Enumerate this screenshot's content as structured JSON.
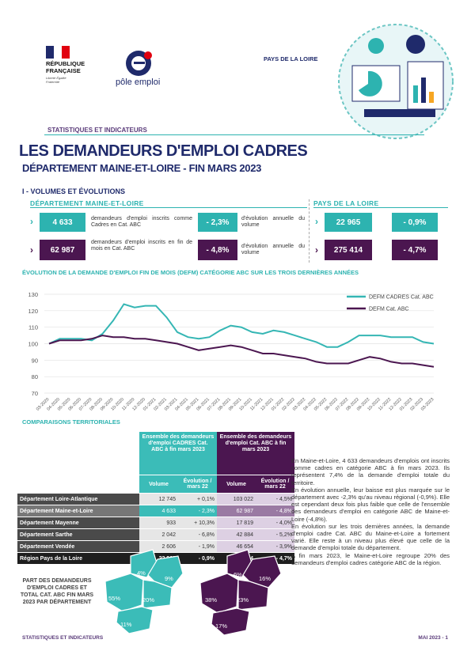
{
  "header": {
    "republique": "RÉPUBLIQUE FRANÇAISE",
    "motto": "Liberté Égalité Fraternité",
    "pole_emploi": "pôle emploi",
    "region": "PAYS DE LA LOIRE",
    "kicker": "STATISTIQUES ET INDICATEURS",
    "title": "LES DEMANDEURS D'EMPLOI CADRES",
    "subtitle": "DÉPARTEMENT MAINE-ET-LOIRE - FIN MARS 2023"
  },
  "section": "I - VOLUMES ET ÉVOLUTIONS",
  "kpis": {
    "dept_label": "DÉPARTEMENT MAINE-ET-LOIRE",
    "region_label": "PAYS DE LA LOIRE",
    "rows": [
      {
        "dept_value": "4 633",
        "dept_text": "demandeurs d'emploi inscrits comme Cadres en Cat. ABC",
        "dept_change": "- 2,3%",
        "change_text": "d'évolution annuelle du volume",
        "region_value": "22 965",
        "region_change": "- 0,9%"
      },
      {
        "dept_value": "62 987",
        "dept_text": "demandeurs d'emploi inscrits en fin de mois en Cat. ABC",
        "dept_change": "- 4,8%",
        "change_text": "d'évolution annuelle du volume",
        "region_value": "275 414",
        "region_change": "- 4,7%"
      }
    ]
  },
  "chart_data": {
    "type": "line",
    "title": "ÉVOLUTION DE LA DEMANDE D'EMPLOI FIN DE MOIS (DEFM) CATÉGORIE ABC SUR LES TROIS DERNIÈRES ANNÉES",
    "x": [
      "03-2020",
      "04-2020",
      "05-2020",
      "06-2020",
      "07-2020",
      "08-2020",
      "09-2020",
      "10-2020",
      "11-2020",
      "12-2020",
      "01-2021",
      "02-2021",
      "03-2021",
      "04-2021",
      "05-2021",
      "06-2021",
      "07-2021",
      "08-2021",
      "09-2021",
      "10-2021",
      "11-2021",
      "12-2021",
      "01-2022",
      "02-2022",
      "03-2022",
      "04-2022",
      "05-2022",
      "06-2022",
      "07-2022",
      "08-2022",
      "09-2022",
      "10-2022",
      "11-2022",
      "12-2022",
      "01-2023",
      "02-2023",
      "03-2023"
    ],
    "series": [
      {
        "name": "DEFM CADRES Cat. ABC",
        "color": "#35b6b4",
        "values": [
          100,
          103,
          103,
          103,
          102,
          106,
          114,
          124,
          122,
          123,
          123,
          116,
          107,
          104,
          103,
          104,
          108,
          111,
          110,
          107,
          106,
          108,
          107,
          105,
          103,
          101,
          98,
          98,
          101,
          105,
          105,
          105,
          104,
          104,
          104,
          101,
          100
        ]
      },
      {
        "name": "DEFM Cat. ABC",
        "color": "#4b1650",
        "values": [
          100,
          102,
          102,
          102,
          103,
          105,
          104,
          104,
          103,
          103,
          102,
          101,
          100,
          98,
          96,
          97,
          98,
          99,
          98,
          96,
          94,
          94,
          93,
          92,
          91,
          89,
          88,
          88,
          88,
          90,
          92,
          91,
          89,
          88,
          88,
          87,
          86
        ]
      }
    ],
    "ylim": [
      70,
      130
    ],
    "yticks": [
      70,
      80,
      90,
      100,
      110,
      120,
      130
    ],
    "grid": true
  },
  "comparisons": {
    "title": "COMPARAISONS TERRITORIALES",
    "group_cadres": "Ensemble des demandeurs d'emploi CADRES Cat. ABC à fin mars 2023",
    "group_abc": "Ensemble des demandeurs d'emploi Cat. ABC à fin mars 2023",
    "col_volume": "Volume",
    "col_evolution": "Évolution / mars 22",
    "rows": [
      [
        "Département Loire-Atlantique",
        "12 745",
        "+ 0,1%",
        "103 022",
        "- 4,5%"
      ],
      [
        "Département Maine-et-Loire",
        "4 633",
        "- 2,3%",
        "62 987",
        "- 4,8%"
      ],
      [
        "Département Mayenne",
        "933",
        "+ 10,3%",
        "17 819",
        "- 4,0%"
      ],
      [
        "Département Sarthe",
        "2 042",
        "- 6,8%",
        "42 884",
        "- 5,2%"
      ],
      [
        "Département Vendée",
        "2 606",
        "- 1,9%",
        "46 654",
        "- 3,9%"
      ],
      [
        "Région Pays de la Loire",
        "22 965",
        "- 0,9%",
        "275 414",
        "- 4,7%"
      ]
    ]
  },
  "text": [
    "En Maine-et-Loire, 4 633 demandeurs d'emplois ont inscrits comme cadres en catégorie ABC à fin mars 2023. Ils représentent 7,4% de la demande d'emploi totale du territoire.",
    "En évolution annuelle, leur baisse est plus marquée sur le département avec -2,3% qu'au niveau régional (-0,9%). Elle est cependant deux fois plus faible que celle de l'ensemble des demandeurs d'emploi en catégorie ABC de Maine-et-Loire (-4,8%).",
    "En évolution sur les trois dernières années, la demande d'emploi cadre Cat. ABC du Maine-et-Loire a fortement varié. Elle reste à un niveau plus élevé que celle de la demande d'emploi totale du département.",
    "A fin mars 2023, le Maine-et-Loire regroupe 20% des demandeurs d'emploi cadres catégorie ABC de la région."
  ],
  "maps": {
    "caption": "PART DES DEMANDEURS D'EMPLOI CADRES ET TOTAL CAT. ABC FIN MARS 2023 PAR DÉPARTEMENT",
    "cadres": [
      "4%",
      "9%",
      "55%",
      "20%",
      "11%"
    ],
    "abc": [
      "6%",
      "16%",
      "38%",
      "23%",
      "17%"
    ]
  },
  "footer": {
    "left": "STATISTIQUES ET INDICATEURS",
    "right": "MAI 2023 - 1"
  }
}
